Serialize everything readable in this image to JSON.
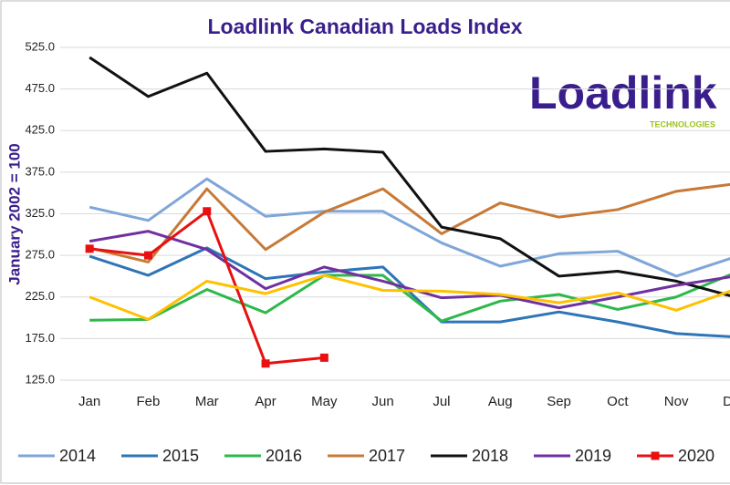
{
  "chart_data": {
    "type": "line",
    "title": "Loadlink Canadian Loads Index",
    "y_label": "January  2002 = 100",
    "categories": [
      "Jan",
      "Feb",
      "Mar",
      "Apr",
      "May",
      "Jun",
      "Jul",
      "Aug",
      "Sep",
      "Oct",
      "Nov",
      "Dec"
    ],
    "ylim": [
      125,
      525
    ],
    "yticks": [
      {
        "value": 125,
        "label": "125.0"
      },
      {
        "value": 175,
        "label": "175.0"
      },
      {
        "value": 225,
        "label": "225.0"
      },
      {
        "value": 275,
        "label": "275.0"
      },
      {
        "value": 325,
        "label": "325.0"
      },
      {
        "value": 375,
        "label": "375.0"
      },
      {
        "value": 425,
        "label": "425.0"
      },
      {
        "value": 475,
        "label": "475.0"
      },
      {
        "value": 525,
        "label": "525.0"
      }
    ],
    "grid": true,
    "legend": "bottom",
    "series": [
      {
        "name": "2014",
        "color": "#7ea6d8",
        "values": [
          333,
          317,
          367,
          322,
          328,
          328,
          290,
          262,
          277,
          280,
          250,
          273
        ]
      },
      {
        "name": "2015",
        "color": "#2e75b6",
        "values": [
          274,
          251,
          284,
          247,
          255,
          261,
          195,
          195,
          207,
          195,
          181,
          177
        ]
      },
      {
        "name": "2016",
        "color": "#2db84a",
        "values": [
          197,
          198,
          234,
          206,
          251,
          251,
          196,
          220,
          228,
          210,
          225,
          254
        ]
      },
      {
        "name": "2017",
        "color": "#c77a37",
        "values": [
          284,
          267,
          355,
          282,
          327,
          355,
          301,
          338,
          321,
          330,
          352,
          361
        ]
      },
      {
        "name": "2018",
        "color": "#111111",
        "values": [
          513,
          466,
          494,
          400,
          403,
          399,
          309,
          295,
          250,
          256,
          244,
          225
        ]
      },
      {
        "name": "2019",
        "color": "#7030a0",
        "values": [
          292,
          304,
          282,
          235,
          261,
          244,
          224,
          227,
          212,
          225,
          239,
          250
        ]
      },
      {
        "name": "2020",
        "color": "#e81010",
        "marker": "square",
        "values": [
          283,
          275,
          328,
          145,
          152,
          null,
          null,
          null,
          null,
          null,
          null,
          null
        ]
      },
      {
        "color": "#ffc000",
        "values": [
          225,
          198,
          244,
          229,
          251,
          233,
          232,
          228,
          218,
          230,
          209,
          234
        ]
      }
    ]
  },
  "logo": {
    "name": "Loadlink",
    "tagline": "TECHNOLOGIES"
  }
}
